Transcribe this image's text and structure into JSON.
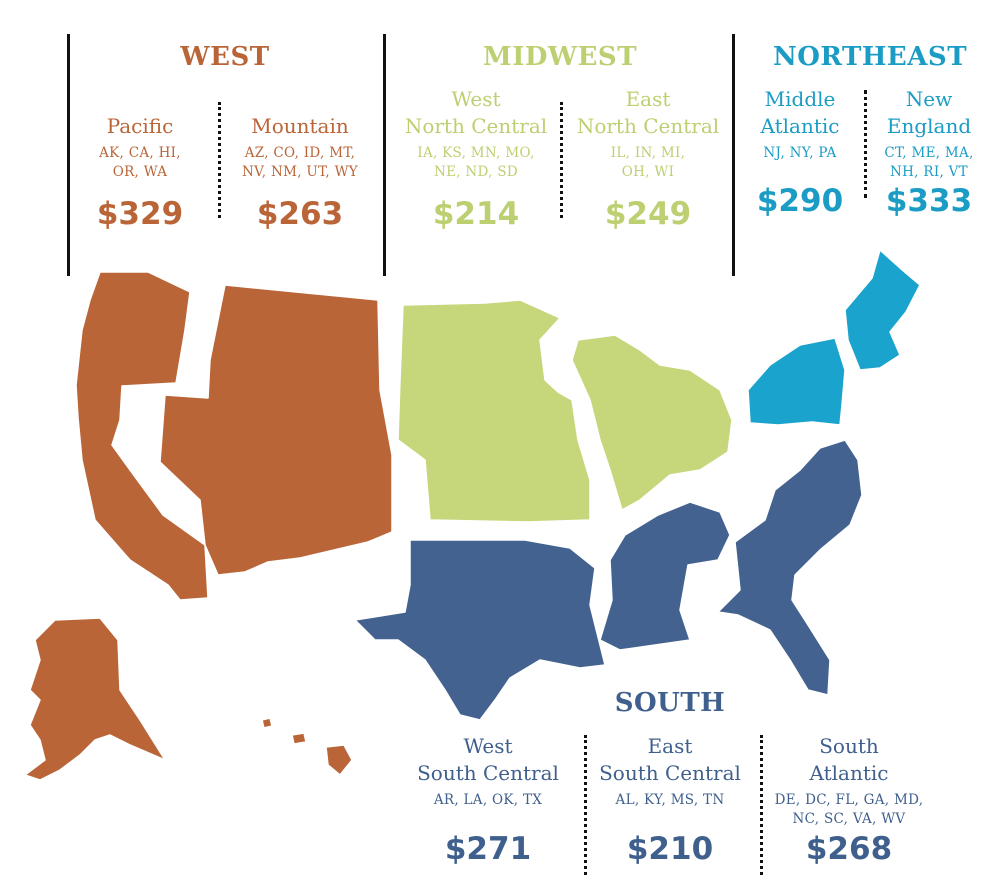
{
  "colors": {
    "west": "#b96538",
    "midwest": "#c6d67a",
    "northeast": "#1aa3cc",
    "south": "#43628f"
  },
  "regions": {
    "west": {
      "title": "WEST",
      "divisions": [
        {
          "name_lines": [
            "Pacific"
          ],
          "states_lines": [
            "AK, CA, HI,",
            "OR, WA"
          ],
          "price": "$329"
        },
        {
          "name_lines": [
            "Mountain"
          ],
          "states_lines": [
            "AZ, CO, ID, MT,",
            "NV, NM, UT, WY"
          ],
          "price": "$263"
        }
      ]
    },
    "midwest": {
      "title": "MIDWEST",
      "divisions": [
        {
          "name_lines": [
            "West",
            "North Central"
          ],
          "states_lines": [
            "IA, KS, MN, MO,",
            "NE, ND, SD"
          ],
          "price": "$214"
        },
        {
          "name_lines": [
            "East",
            "North Central"
          ],
          "states_lines": [
            "IL, IN, MI,",
            "OH, WI"
          ],
          "price": "$249"
        }
      ]
    },
    "northeast": {
      "title": "NORTHEAST",
      "divisions": [
        {
          "name_lines": [
            "Middle",
            "Atlantic"
          ],
          "states_lines": [
            "NJ, NY, PA"
          ],
          "price": "$290"
        },
        {
          "name_lines": [
            "New",
            "England"
          ],
          "states_lines": [
            "CT, ME, MA,",
            "NH, RI, VT"
          ],
          "price": "$333"
        }
      ]
    },
    "south": {
      "title": "SOUTH",
      "divisions": [
        {
          "name_lines": [
            "West",
            "South Central"
          ],
          "states_lines": [
            "AR, LA, OK, TX"
          ],
          "price": "$271"
        },
        {
          "name_lines": [
            "East",
            "South Central"
          ],
          "states_lines": [
            "AL, KY, MS, TN"
          ],
          "price": "$210"
        },
        {
          "name_lines": [
            "South",
            "Atlantic"
          ],
          "states_lines": [
            "DE, DC, FL, GA, MD,",
            "NC, SC, VA, WV"
          ],
          "price": "$268"
        }
      ]
    }
  }
}
